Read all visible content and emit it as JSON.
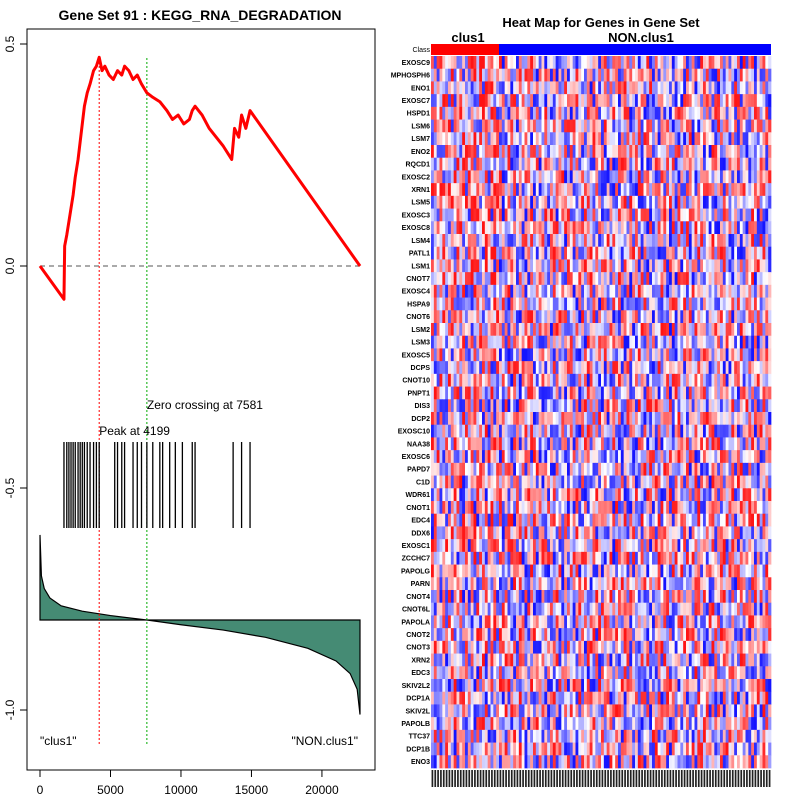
{
  "chart_data": [
    {
      "type": "line",
      "title": "Gene Set  91 : KEGG_RNA_DEGRADATION",
      "xlabel": "",
      "ylabel": "",
      "xlim": [
        0,
        22700
      ],
      "ylim": [
        -1.07,
        0.53
      ],
      "xticks": [
        0,
        5000,
        10000,
        15000,
        20000
      ],
      "xtick_labels": [
        "0",
        "5000",
        "10000",
        "15000",
        "20000"
      ],
      "yticks": [
        0.5,
        0.0,
        -0.5,
        -1.0
      ],
      "ytick_labels": [
        "0.5",
        "0.0",
        "-0.5",
        "-1.0"
      ],
      "peak": {
        "x": 4199,
        "label": "Peak at 4199"
      },
      "zero_crossing": {
        "x": 7581,
        "label": "Zero crossing at 7581"
      },
      "left_label": "\"clus1\"",
      "right_label": "\"NON.clus1\"",
      "colors": {
        "es_line": "#ff0000",
        "metric_fill": "#458b74",
        "peak_line": "#ff0000",
        "zero_line": "#00aa00"
      },
      "series": [
        {
          "name": "Running enrichment score",
          "x": [
            0,
            1700,
            1750,
            1900,
            2050,
            2200,
            2350,
            2500,
            2700,
            2850,
            3000,
            3150,
            3350,
            3550,
            3800,
            4000,
            4199,
            4400,
            4600,
            4900,
            5200,
            5500,
            5800,
            6000,
            6300,
            6600,
            6900,
            7200,
            7581,
            8000,
            8500,
            9000,
            9400,
            9800,
            10200,
            10600,
            10800,
            11000,
            11500,
            12000,
            12500,
            13000,
            13600,
            13800,
            14100,
            14300,
            14600,
            14900,
            22700
          ],
          "y": [
            0.0,
            -0.075,
            0.045,
            0.07,
            0.1,
            0.13,
            0.16,
            0.2,
            0.24,
            0.28,
            0.32,
            0.36,
            0.39,
            0.41,
            0.44,
            0.45,
            0.47,
            0.44,
            0.45,
            0.43,
            0.42,
            0.44,
            0.43,
            0.45,
            0.44,
            0.42,
            0.43,
            0.41,
            0.39,
            0.38,
            0.37,
            0.35,
            0.33,
            0.34,
            0.32,
            0.33,
            0.35,
            0.36,
            0.34,
            0.31,
            0.29,
            0.27,
            0.24,
            0.31,
            0.29,
            0.34,
            0.31,
            0.35,
            0.0
          ]
        },
        {
          "name": "Gene set hits",
          "type": "rug",
          "x": [
            1700,
            1900,
            2050,
            2200,
            2350,
            2500,
            2700,
            2850,
            3000,
            3150,
            3350,
            3550,
            3800,
            4000,
            4199,
            5300,
            5500,
            5800,
            6000,
            6600,
            6900,
            7200,
            7581,
            8000,
            8500,
            8700,
            9200,
            9600,
            10100,
            10800,
            11000,
            13700,
            14300,
            14900
          ]
        },
        {
          "name": "Ranked list metric",
          "type": "area",
          "x": [
            0,
            100,
            300,
            700,
            1500,
            3000,
            5000,
            7581,
            10000,
            13000,
            16000,
            19000,
            21000,
            22000,
            22500,
            22700
          ],
          "y": [
            0.27,
            0.14,
            0.1,
            0.07,
            0.045,
            0.028,
            0.014,
            0.0,
            -0.015,
            -0.032,
            -0.055,
            -0.09,
            -0.13,
            -0.17,
            -0.22,
            -0.3
          ]
        }
      ]
    },
    {
      "type": "heatmap",
      "title": "Heat Map for Genes in Gene Set",
      "class_labels": [
        "clus1",
        "NON.clus1"
      ],
      "class_colors": [
        "#ff0000",
        "#0000ff"
      ],
      "class_row_label": "Class",
      "class_split_fraction": 0.2,
      "column_count": 120,
      "genes": [
        "EXOSC9",
        "MPHOSPH6",
        "ENO1",
        "EXOSC7",
        "HSPD1",
        "LSM6",
        "LSM7",
        "ENO2",
        "RQCD1",
        "EXOSC2",
        "XRN1",
        "LSM5",
        "EXOSC3",
        "EXOSC8",
        "LSM4",
        "PATL1",
        "LSM1",
        "CNOT7",
        "EXOSC4",
        "HSPA9",
        "CNOT6",
        "LSM2",
        "LSM3",
        "EXOSC5",
        "DCPS",
        "CNOT10",
        "PNPT1",
        "DIS3",
        "DCP2",
        "EXOSC10",
        "NAA38",
        "EXOSC6",
        "PAPD7",
        "C1D",
        "WDR61",
        "CNOT1",
        "EDC4",
        "DDX6",
        "EXOSC1",
        "ZCCHC7",
        "PAPOLG",
        "PARN",
        "CNOT4",
        "CNOT6L",
        "PAPOLA",
        "CNOT2",
        "CNOT3",
        "XRN2",
        "EDC3",
        "SKIV2L2",
        "DCP1A",
        "SKIV2L",
        "PAPOLB",
        "TTC37",
        "DCP1B",
        "ENO3"
      ]
    }
  ]
}
